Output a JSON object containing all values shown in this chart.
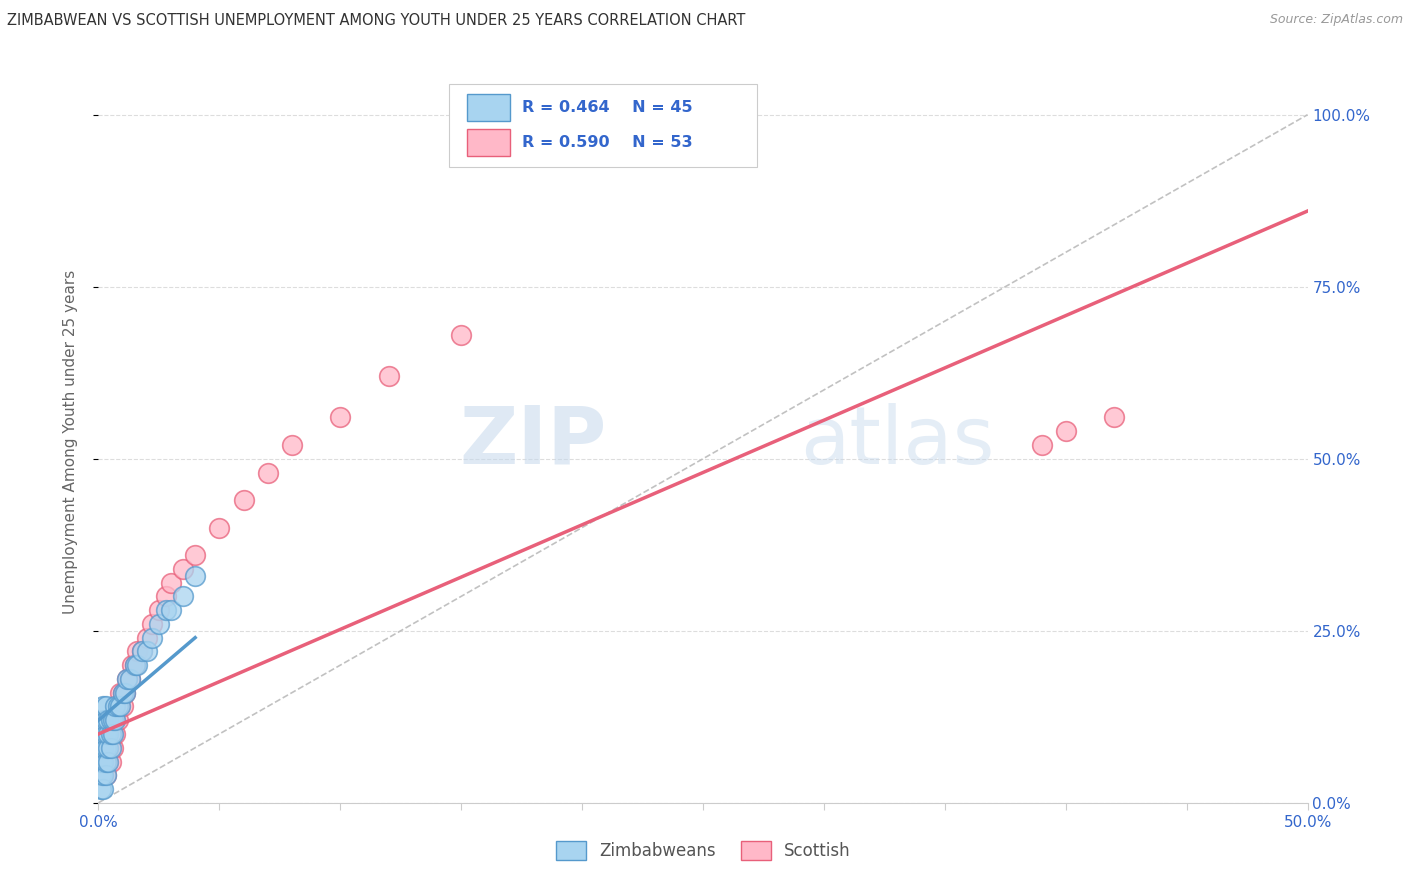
{
  "title": "ZIMBABWEAN VS SCOTTISH UNEMPLOYMENT AMONG YOUTH UNDER 25 YEARS CORRELATION CHART",
  "source": "Source: ZipAtlas.com",
  "ylabel": "Unemployment Among Youth under 25 years",
  "xlim": [
    0.0,
    0.5
  ],
  "ylim": [
    0.0,
    1.05
  ],
  "xtick_vals": [
    0.0,
    0.05,
    0.1,
    0.15,
    0.2,
    0.25,
    0.3,
    0.35,
    0.4,
    0.45,
    0.5
  ],
  "xtick_labels": [
    "0.0%",
    "",
    "",
    "",
    "",
    "",
    "",
    "",
    "",
    "",
    "50.0%"
  ],
  "ytick_vals": [
    0.0,
    0.25,
    0.5,
    0.75,
    1.0
  ],
  "ytick_labels": [
    "0.0%",
    "25.0%",
    "50.0%",
    "75.0%",
    "100.0%"
  ],
  "zim_color": "#a8d4f0",
  "zim_edge": "#5599cc",
  "sco_color": "#ffb8c8",
  "sco_edge": "#e8607a",
  "zim_line_color": "#5599cc",
  "sco_line_color": "#e8607a",
  "diag_color": "#bbbbbb",
  "bg_color": "#ffffff",
  "grid_color": "#dddddd",
  "R_zim": "R = 0.464",
  "N_zim": "N = 45",
  "R_sco": "R = 0.590",
  "N_sco": "N = 53",
  "watermark_zip": "ZIP",
  "watermark_atlas": "atlas",
  "zim_x": [
    0.001,
    0.001,
    0.001,
    0.001,
    0.001,
    0.002,
    0.002,
    0.002,
    0.002,
    0.002,
    0.002,
    0.002,
    0.003,
    0.003,
    0.003,
    0.003,
    0.003,
    0.003,
    0.004,
    0.004,
    0.004,
    0.004,
    0.005,
    0.005,
    0.005,
    0.006,
    0.006,
    0.007,
    0.007,
    0.008,
    0.009,
    0.01,
    0.011,
    0.012,
    0.013,
    0.015,
    0.016,
    0.018,
    0.02,
    0.022,
    0.025,
    0.028,
    0.03,
    0.035,
    0.04
  ],
  "zim_y": [
    0.02,
    0.04,
    0.06,
    0.08,
    0.1,
    0.02,
    0.04,
    0.06,
    0.08,
    0.1,
    0.12,
    0.14,
    0.04,
    0.06,
    0.08,
    0.1,
    0.12,
    0.14,
    0.06,
    0.08,
    0.1,
    0.12,
    0.08,
    0.1,
    0.12,
    0.1,
    0.12,
    0.12,
    0.14,
    0.14,
    0.14,
    0.16,
    0.16,
    0.18,
    0.18,
    0.2,
    0.2,
    0.22,
    0.22,
    0.24,
    0.26,
    0.28,
    0.28,
    0.3,
    0.33
  ],
  "sco_x": [
    0.001,
    0.001,
    0.001,
    0.002,
    0.002,
    0.002,
    0.003,
    0.003,
    0.003,
    0.003,
    0.004,
    0.004,
    0.004,
    0.005,
    0.005,
    0.005,
    0.005,
    0.006,
    0.006,
    0.006,
    0.007,
    0.007,
    0.007,
    0.008,
    0.008,
    0.009,
    0.009,
    0.01,
    0.01,
    0.011,
    0.012,
    0.013,
    0.014,
    0.015,
    0.016,
    0.018,
    0.02,
    0.022,
    0.025,
    0.028,
    0.03,
    0.035,
    0.04,
    0.05,
    0.06,
    0.07,
    0.08,
    0.1,
    0.12,
    0.15,
    0.39,
    0.4,
    0.42
  ],
  "sco_y": [
    0.04,
    0.06,
    0.08,
    0.04,
    0.06,
    0.08,
    0.04,
    0.06,
    0.08,
    0.1,
    0.06,
    0.08,
    0.1,
    0.06,
    0.08,
    0.1,
    0.12,
    0.08,
    0.1,
    0.12,
    0.1,
    0.12,
    0.14,
    0.12,
    0.14,
    0.14,
    0.16,
    0.14,
    0.16,
    0.16,
    0.18,
    0.18,
    0.2,
    0.2,
    0.22,
    0.22,
    0.24,
    0.26,
    0.28,
    0.3,
    0.32,
    0.34,
    0.36,
    0.4,
    0.44,
    0.48,
    0.52,
    0.56,
    0.62,
    0.68,
    0.52,
    0.54,
    0.56
  ],
  "sco_line_x0": 0.0,
  "sco_line_y0": 0.1,
  "sco_line_x1": 0.5,
  "sco_line_y1": 0.86,
  "zim_line_x0": 0.0,
  "zim_line_y0": 0.12,
  "zim_line_x1": 0.04,
  "zim_line_y1": 0.24
}
